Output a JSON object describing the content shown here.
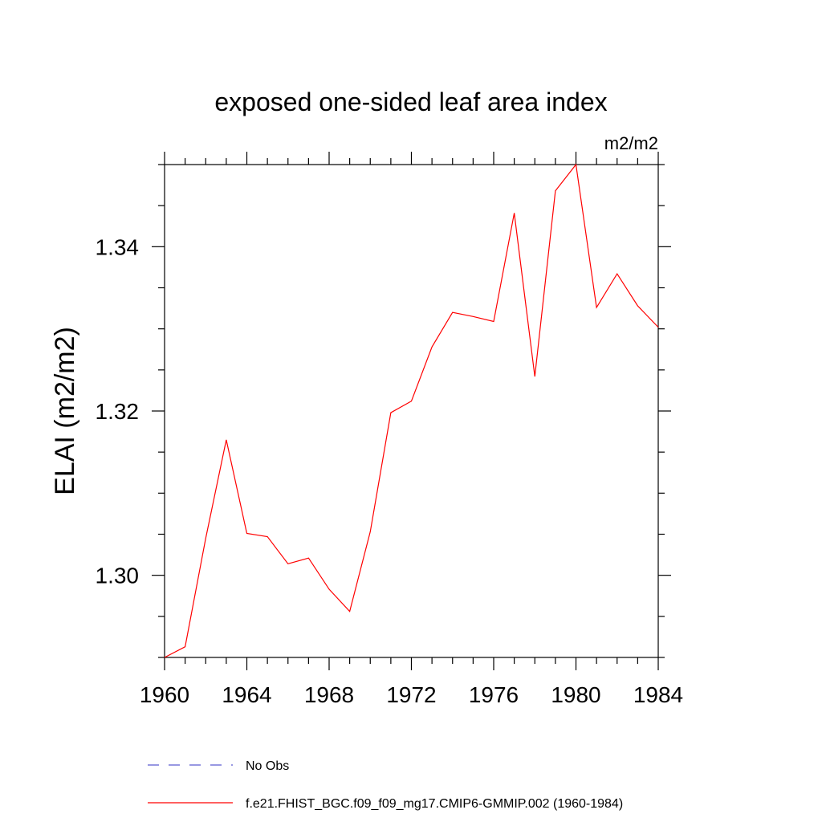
{
  "chart_data": {
    "type": "line",
    "title": "exposed one-sided leaf area index",
    "units_label": "m2/m2",
    "ylabel": "ELAI  (m2/m2)",
    "xlabel": "",
    "xlim": [
      1960,
      1984
    ],
    "ylim": [
      1.29,
      1.35
    ],
    "x_ticks": [
      1960,
      1964,
      1968,
      1972,
      1976,
      1980,
      1984
    ],
    "x_tick_labels": [
      "1960",
      "1964",
      "1968",
      "1972",
      "1976",
      "1980",
      "1984"
    ],
    "y_ticks": [
      1.3,
      1.32,
      1.34
    ],
    "y_tick_labels": [
      "1.30",
      "1.32",
      "1.34"
    ],
    "grid": false,
    "legend_placement": "bottom",
    "series": [
      {
        "name": "f.e21.FHIST_BGC.f09_f09_mg17.CMIP6-GMMIP.002 (1960-1984)",
        "color": "#ff0000",
        "style": "solid",
        "x": [
          1960,
          1961,
          1962,
          1963,
          1964,
          1965,
          1966,
          1967,
          1968,
          1969,
          1970,
          1971,
          1972,
          1973,
          1974,
          1975,
          1976,
          1977,
          1978,
          1979,
          1980,
          1981,
          1982,
          1983,
          1984
        ],
        "y": [
          1.29,
          1.2913,
          1.3045,
          1.3165,
          1.3051,
          1.3047,
          1.3014,
          1.3021,
          1.2983,
          1.2956,
          1.3053,
          1.3198,
          1.3212,
          1.3278,
          1.332,
          1.3315,
          1.3309,
          1.3441,
          1.3242,
          1.3468,
          1.35,
          1.3326,
          1.3367,
          1.3328,
          1.3302
        ]
      },
      {
        "name": "No Obs",
        "color": "#5a5ad0",
        "style": "dashed",
        "x": [],
        "y": []
      }
    ]
  }
}
